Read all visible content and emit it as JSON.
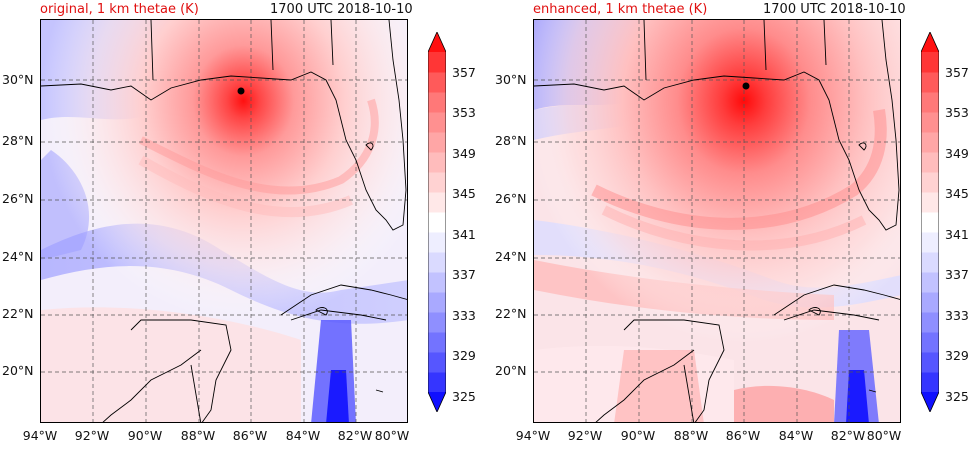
{
  "panels": [
    {
      "title": "original, 1 km thetae (K)",
      "time": "1700 UTC 2018-10-10",
      "storm_center": {
        "lon": -86.4,
        "lat": 29.6
      }
    },
    {
      "title": "enhanced, 1 km thetae (K)",
      "time": "1700 UTC 2018-10-10",
      "storm_center": {
        "lon": -85.9,
        "lat": 29.8
      }
    }
  ],
  "axes": {
    "lat_ticks": [
      "30°N",
      "28°N",
      "26°N",
      "24°N",
      "22°N",
      "20°N"
    ],
    "lon_ticks": [
      "94°W",
      "92°W",
      "90°W",
      "88°W",
      "86°W",
      "84°W",
      "82°W",
      "80°W"
    ],
    "lat_values": [
      30,
      28,
      26,
      24,
      22,
      20
    ],
    "lon_values": [
      -94,
      -92,
      -90,
      -88,
      -86,
      -84,
      -82,
      -80
    ],
    "lon_range": [
      -94,
      -80
    ],
    "lat_range": [
      18.2,
      32.1
    ]
  },
  "colorbar": {
    "labels": [
      "357",
      "353",
      "349",
      "345",
      "341",
      "337",
      "333",
      "329",
      "325"
    ],
    "range": [
      325,
      359
    ],
    "extend": "both",
    "colors": [
      "#1010ff",
      "#3535ff",
      "#5656ff",
      "#7373ff",
      "#8f8fff",
      "#a9a9ff",
      "#c2c2ff",
      "#dadaff",
      "#eeeeff",
      "#ffffff",
      "#ffe8e8",
      "#ffd2d2",
      "#ffbcbc",
      "#ffa6a6",
      "#ff9090",
      "#ff7878",
      "#ff5a5a",
      "#ff3636",
      "#ff1010"
    ]
  }
}
